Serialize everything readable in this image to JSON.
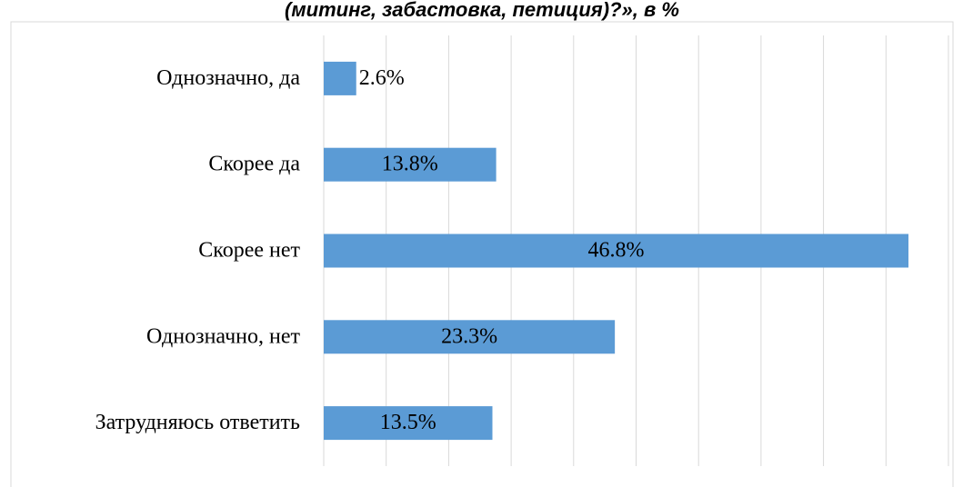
{
  "chart_data": {
    "type": "barh",
    "title": "(митинг, забастовка, петиция)?», в %",
    "categories": [
      "Однозначно, да",
      "Скорее да",
      "Скорее нет",
      "Однозначно, нет",
      "Затрудняюсь ответить"
    ],
    "values": [
      2.6,
      13.8,
      46.8,
      23.3,
      13.5
    ],
    "value_labels": [
      "2.6%",
      "13.8%",
      "46.8%",
      "23.3%",
      "13.5%"
    ],
    "color": "#5b9bd5",
    "xlim": [
      0,
      50
    ],
    "xticks": [
      0,
      5,
      10,
      15,
      20,
      25,
      30,
      35,
      40,
      45,
      50
    ],
    "grid": true
  }
}
